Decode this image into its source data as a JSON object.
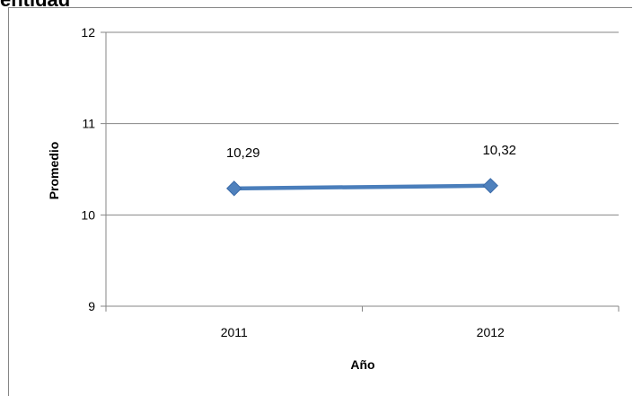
{
  "cut_title": "entidad",
  "chart_data": {
    "type": "line",
    "categories": [
      "2011",
      "2012"
    ],
    "series": [
      {
        "values": [
          10.29,
          10.32
        ],
        "data_labels": [
          "10,29",
          "10,32"
        ]
      }
    ],
    "ylim": [
      9,
      12
    ],
    "yticks": [
      9,
      10,
      11,
      12
    ],
    "ytick_labels": [
      "9",
      "10",
      "11",
      "12"
    ],
    "xlabel": "Año",
    "ylabel": "Promedio",
    "grid": true,
    "colors": {
      "line": "#4a7ebb",
      "marker": "#4f81bd",
      "marker_edge": "#3a6aa8",
      "grid": "#868686"
    }
  }
}
